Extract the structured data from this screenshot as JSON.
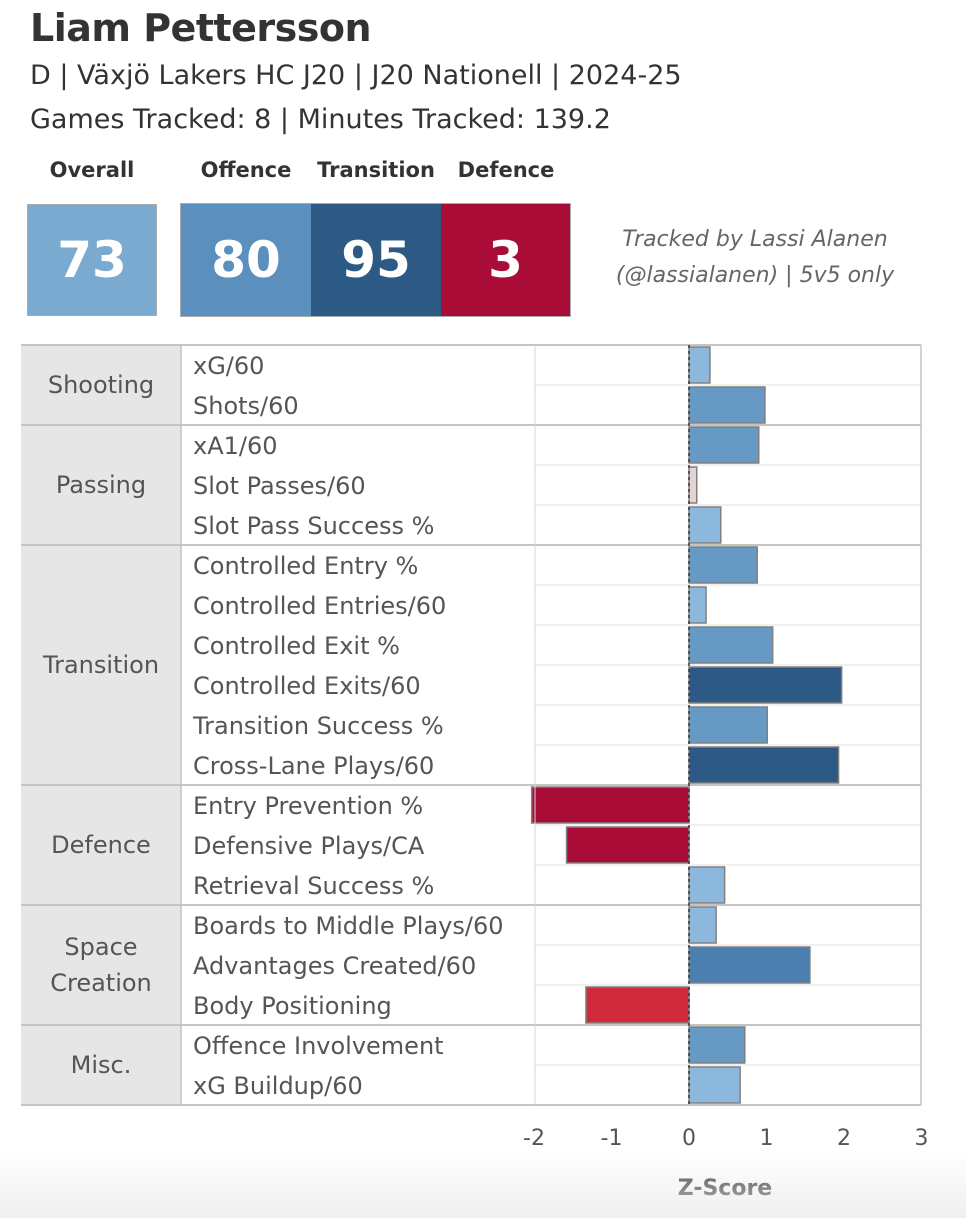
{
  "header": {
    "player_name": "Liam Pettersson",
    "subtitle": "D | Växjö Lakers HC J20 | J20 Nationell | 2024-25",
    "tracking_line": "Games Tracked: 8 | Minutes Tracked: 139.2"
  },
  "scores": {
    "overall": {
      "label": "Overall",
      "value": "73",
      "color": "#7aaad0"
    },
    "offence": {
      "label": "Offence",
      "value": "80",
      "color": "#5b8fbe"
    },
    "transition": {
      "label": "Transition",
      "value": "95",
      "color": "#2d5985"
    },
    "defence": {
      "label": "Defence",
      "value": "3",
      "color": "#a80c37"
    }
  },
  "credit": {
    "line1": "Tracked by Lassi Alanen",
    "line2": "(@lassialanen) | 5v5 only"
  },
  "chart_data": {
    "type": "bar",
    "orientation": "horizontal",
    "xlabel": "Z-Score",
    "xlim": [
      -2,
      3
    ],
    "xticks": [
      -2,
      -1,
      0,
      1,
      2,
      3
    ],
    "groups": [
      {
        "name": "Shooting",
        "metrics": [
          {
            "label": "xG/60",
            "value": 0.27,
            "color": "#8cb8dd"
          },
          {
            "label": "Shots/60",
            "value": 0.98,
            "color": "#6699c4"
          }
        ]
      },
      {
        "name": "Passing",
        "metrics": [
          {
            "label": "xA1/60",
            "value": 0.9,
            "color": "#6699c4"
          },
          {
            "label": "Slot Passes/60",
            "value": 0.1,
            "color": "#e3d3d3"
          },
          {
            "label": "Slot Pass Success %",
            "value": 0.41,
            "color": "#8cb8dd"
          }
        ]
      },
      {
        "name": "Transition",
        "metrics": [
          {
            "label": "Controlled Entry %",
            "value": 0.88,
            "color": "#6699c4"
          },
          {
            "label": "Controlled Entries/60",
            "value": 0.22,
            "color": "#8cb8dd"
          },
          {
            "label": "Controlled Exit %",
            "value": 1.08,
            "color": "#6699c4"
          },
          {
            "label": "Controlled Exits/60",
            "value": 1.97,
            "color": "#2d5985"
          },
          {
            "label": "Transition Success %",
            "value": 1.01,
            "color": "#6699c4"
          },
          {
            "label": "Cross-Lane Plays/60",
            "value": 1.93,
            "color": "#2d5985"
          }
        ]
      },
      {
        "name": "Defence",
        "metrics": [
          {
            "label": "Entry Prevention %",
            "value": -2.03,
            "color": "#a80c37"
          },
          {
            "label": "Defensive Plays/CA",
            "value": -1.58,
            "color": "#a80c37"
          },
          {
            "label": "Retrieval Success %",
            "value": 0.46,
            "color": "#8cb8dd"
          }
        ]
      },
      {
        "name": "Space Creation",
        "metrics": [
          {
            "label": "Boards to Middle Plays/60",
            "value": 0.35,
            "color": "#8cb8dd"
          },
          {
            "label": "Advantages Created/60",
            "value": 1.56,
            "color": "#4b7fb0"
          },
          {
            "label": "Body Positioning",
            "value": -1.33,
            "color": "#d12a3c"
          }
        ]
      },
      {
        "name": "Misc.",
        "metrics": [
          {
            "label": "Offence Involvement",
            "value": 0.72,
            "color": "#6699c4"
          },
          {
            "label": "xG Buildup/60",
            "value": 0.66,
            "color": "#8cb8dd"
          }
        ]
      }
    ]
  }
}
